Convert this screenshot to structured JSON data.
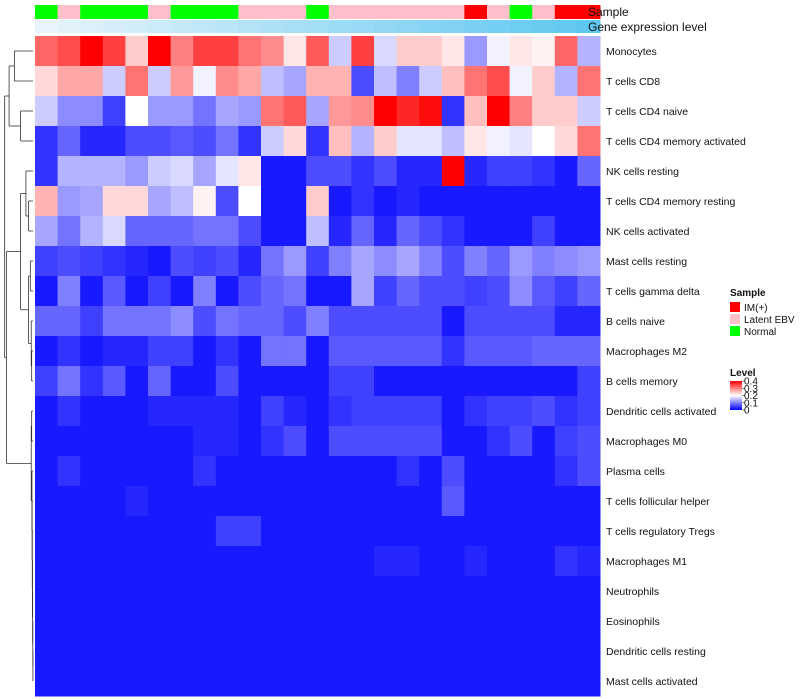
{
  "chart_data": {
    "type": "heatmap",
    "annotation_rows": [
      "Sample",
      "Gene expression level"
    ],
    "row_labels": [
      "Monocytes",
      "T cells CD8",
      "T cells CD4 naive",
      "T cells CD4 memory activated",
      "NK cells resting",
      "T cells CD4 memory resting",
      "NK cells activated",
      "Mast cells resting",
      "T cells gamma delta",
      "B cells naive",
      "Macrophages M2",
      "B cells memory",
      "Dendritic cells activated",
      "Macrophages M0",
      "Plasma cells",
      "T cells follicular helper",
      "T cells regulatory  Tregs",
      "Macrophages M1",
      "Neutrophils",
      "Eosinophils",
      "Dendritic cells resting",
      "Mast cells activated"
    ],
    "column_samples": [
      "Normal",
      "Latent EBV",
      "Normal",
      "Normal",
      "Normal",
      "Latent EBV",
      "Normal",
      "Normal",
      "Normal",
      "Latent EBV",
      "Latent EBV",
      "Latent EBV",
      "Normal",
      "Latent EBV",
      "Latent EBV",
      "Latent EBV",
      "Latent EBV",
      "Latent EBV",
      "Latent EBV",
      "IM(+)",
      "Latent EBV",
      "Normal",
      "Latent EBV",
      "IM(+)",
      "IM(+)"
    ],
    "values": [
      [
        0.32,
        0.34,
        0.4,
        0.35,
        0.24,
        0.4,
        0.3,
        0.35,
        0.35,
        0.31,
        0.29,
        0.22,
        0.33,
        0.16,
        0.35,
        0.17,
        0.24,
        0.24,
        0.22,
        0.12,
        0.19,
        0.22,
        0.21,
        0.32,
        0.14
      ],
      [
        0.23,
        0.27,
        0.27,
        0.16,
        0.31,
        0.16,
        0.28,
        0.19,
        0.29,
        0.27,
        0.15,
        0.13,
        0.26,
        0.26,
        0.06,
        0.15,
        0.1,
        0.16,
        0.25,
        0.31,
        0.34,
        0.19,
        0.24,
        0.14,
        0.31
      ],
      [
        0.16,
        0.11,
        0.11,
        0.05,
        0.2,
        0.12,
        0.12,
        0.09,
        0.13,
        0.12,
        0.31,
        0.33,
        0.13,
        0.28,
        0.29,
        0.4,
        0.37,
        0.39,
        0.04,
        0.25,
        0.4,
        0.3,
        0.24,
        0.24,
        0.16
      ],
      [
        0.04,
        0.08,
        0.03,
        0.03,
        0.06,
        0.06,
        0.07,
        0.06,
        0.09,
        0.04,
        0.16,
        0.23,
        0.04,
        0.25,
        0.14,
        0.24,
        0.18,
        0.18,
        0.15,
        0.22,
        0.19,
        0.18,
        0.2,
        0.23,
        0.31
      ],
      [
        0.04,
        0.14,
        0.14,
        0.14,
        0.12,
        0.16,
        0.17,
        0.13,
        0.18,
        0.22,
        0.02,
        0.02,
        0.06,
        0.06,
        0.04,
        0.06,
        0.03,
        0.03,
        0.4,
        0.03,
        0.05,
        0.05,
        0.04,
        0.02,
        0.08
      ],
      [
        0.26,
        0.12,
        0.13,
        0.23,
        0.23,
        0.13,
        0.15,
        0.21,
        0.06,
        0.2,
        0.02,
        0.02,
        0.24,
        0.02,
        0.04,
        0.02,
        0.03,
        0.02,
        0.02,
        0.02,
        0.02,
        0.02,
        0.02,
        0.02,
        0.02
      ],
      [
        0.13,
        0.09,
        0.14,
        0.17,
        0.08,
        0.08,
        0.08,
        0.09,
        0.09,
        0.06,
        0.02,
        0.02,
        0.15,
        0.03,
        0.08,
        0.03,
        0.08,
        0.06,
        0.04,
        0.02,
        0.02,
        0.02,
        0.05,
        0.02,
        0.02
      ],
      [
        0.05,
        0.06,
        0.05,
        0.04,
        0.03,
        0.02,
        0.06,
        0.05,
        0.06,
        0.03,
        0.09,
        0.12,
        0.05,
        0.1,
        0.13,
        0.11,
        0.13,
        0.1,
        0.06,
        0.1,
        0.08,
        0.12,
        0.1,
        0.11,
        0.12
      ],
      [
        0.02,
        0.1,
        0.02,
        0.07,
        0.02,
        0.05,
        0.02,
        0.1,
        0.02,
        0.06,
        0.08,
        0.09,
        0.02,
        0.02,
        0.13,
        0.05,
        0.08,
        0.06,
        0.06,
        0.05,
        0.06,
        0.11,
        0.07,
        0.05,
        0.08
      ],
      [
        0.08,
        0.08,
        0.05,
        0.09,
        0.09,
        0.09,
        0.11,
        0.06,
        0.09,
        0.08,
        0.08,
        0.06,
        0.1,
        0.06,
        0.06,
        0.06,
        0.06,
        0.06,
        0.02,
        0.06,
        0.06,
        0.06,
        0.06,
        0.03,
        0.03
      ],
      [
        0.02,
        0.04,
        0.02,
        0.03,
        0.03,
        0.05,
        0.05,
        0.02,
        0.04,
        0.02,
        0.09,
        0.09,
        0.02,
        0.07,
        0.07,
        0.07,
        0.07,
        0.07,
        0.04,
        0.07,
        0.07,
        0.07,
        0.08,
        0.08,
        0.08
      ],
      [
        0.05,
        0.09,
        0.04,
        0.07,
        0.02,
        0.08,
        0.02,
        0.02,
        0.06,
        0.02,
        0.02,
        0.02,
        0.02,
        0.05,
        0.05,
        0.02,
        0.02,
        0.02,
        0.02,
        0.02,
        0.02,
        0.02,
        0.02,
        0.02,
        0.05
      ],
      [
        0.02,
        0.04,
        0.02,
        0.02,
        0.02,
        0.03,
        0.03,
        0.03,
        0.03,
        0.02,
        0.05,
        0.03,
        0.02,
        0.04,
        0.05,
        0.05,
        0.05,
        0.05,
        0.02,
        0.04,
        0.05,
        0.05,
        0.06,
        0.04,
        0.05
      ],
      [
        0.02,
        0.02,
        0.02,
        0.02,
        0.02,
        0.02,
        0.02,
        0.03,
        0.03,
        0.02,
        0.04,
        0.06,
        0.02,
        0.06,
        0.06,
        0.06,
        0.06,
        0.06,
        0.02,
        0.02,
        0.04,
        0.06,
        0.02,
        0.05,
        0.06
      ],
      [
        0.02,
        0.04,
        0.02,
        0.02,
        0.02,
        0.02,
        0.02,
        0.04,
        0.02,
        0.02,
        0.02,
        0.02,
        0.02,
        0.02,
        0.02,
        0.02,
        0.04,
        0.02,
        0.06,
        0.02,
        0.02,
        0.02,
        0.02,
        0.04,
        0.06
      ],
      [
        0.02,
        0.02,
        0.02,
        0.02,
        0.03,
        0.02,
        0.02,
        0.02,
        0.02,
        0.02,
        0.02,
        0.02,
        0.02,
        0.02,
        0.02,
        0.02,
        0.02,
        0.02,
        0.07,
        0.02,
        0.02,
        0.02,
        0.02,
        0.02,
        0.02
      ],
      [
        0.02,
        0.02,
        0.02,
        0.02,
        0.02,
        0.02,
        0.02,
        0.02,
        0.05,
        0.05,
        0.02,
        0.02,
        0.02,
        0.02,
        0.02,
        0.02,
        0.02,
        0.02,
        0.02,
        0.02,
        0.02,
        0.02,
        0.02,
        0.02,
        0.02
      ],
      [
        0.02,
        0.02,
        0.02,
        0.02,
        0.02,
        0.02,
        0.02,
        0.02,
        0.02,
        0.02,
        0.02,
        0.02,
        0.02,
        0.02,
        0.02,
        0.03,
        0.03,
        0.02,
        0.02,
        0.03,
        0.02,
        0.02,
        0.02,
        0.04,
        0.03
      ],
      [
        0.02,
        0.02,
        0.02,
        0.02,
        0.02,
        0.02,
        0.02,
        0.02,
        0.02,
        0.02,
        0.02,
        0.02,
        0.02,
        0.02,
        0.02,
        0.02,
        0.02,
        0.02,
        0.02,
        0.02,
        0.02,
        0.02,
        0.02,
        0.02,
        0.02
      ],
      [
        0.02,
        0.02,
        0.02,
        0.02,
        0.02,
        0.02,
        0.02,
        0.02,
        0.02,
        0.02,
        0.02,
        0.02,
        0.02,
        0.02,
        0.02,
        0.02,
        0.02,
        0.02,
        0.02,
        0.02,
        0.02,
        0.02,
        0.02,
        0.02,
        0.02
      ],
      [
        0.02,
        0.02,
        0.02,
        0.02,
        0.02,
        0.02,
        0.02,
        0.02,
        0.02,
        0.02,
        0.02,
        0.02,
        0.02,
        0.02,
        0.02,
        0.02,
        0.02,
        0.02,
        0.02,
        0.02,
        0.02,
        0.02,
        0.02,
        0.02,
        0.02
      ],
      [
        0.02,
        0.02,
        0.02,
        0.02,
        0.02,
        0.02,
        0.02,
        0.02,
        0.02,
        0.02,
        0.02,
        0.02,
        0.02,
        0.02,
        0.02,
        0.02,
        0.02,
        0.02,
        0.02,
        0.02,
        0.02,
        0.02,
        0.02,
        0.02,
        0.02
      ]
    ],
    "sample_legend": {
      "title": "Sample",
      "entries": [
        {
          "label": "IM(+)",
          "color": "#ff0000"
        },
        {
          "label": "Latent EBV",
          "color": "#ffc0cb"
        },
        {
          "label": "Normal",
          "color": "#00ff00"
        }
      ]
    },
    "level_legend": {
      "title": "Level",
      "ticks": [
        "0.4",
        "0.3",
        "0.2",
        "0.1",
        "0"
      ],
      "tick_values": [
        0.4,
        0.3,
        0.2,
        0.1,
        0
      ],
      "range": [
        0,
        0.4
      ]
    },
    "color_scale": {
      "low": "#0000ff",
      "mid": "#ffffff",
      "high": "#ff0000",
      "midpoint": 0.2
    },
    "gene_expression_gradient": {
      "start": "#e8f4fb",
      "end": "#5ec7f0"
    }
  }
}
